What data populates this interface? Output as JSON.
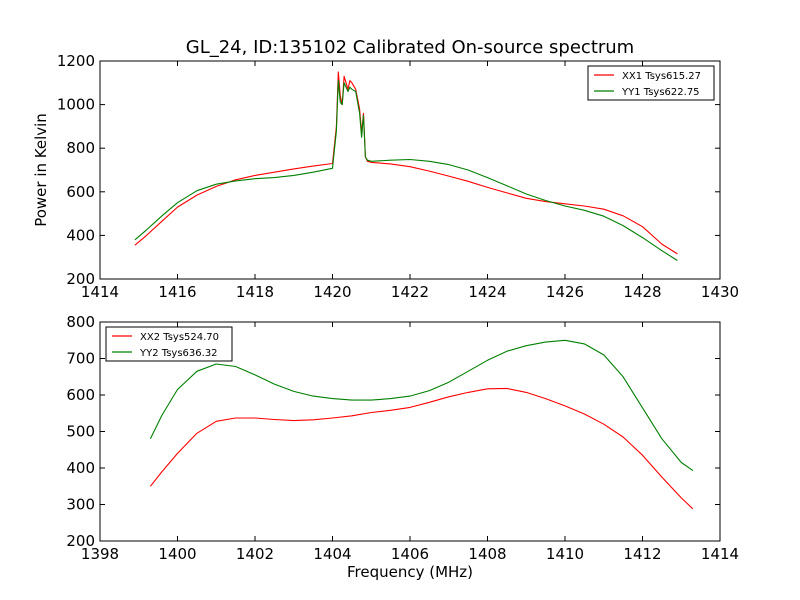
{
  "figure": {
    "title": "GL_24, ID:135102 Calibrated On-source spectrum",
    "shared_xlabel": "Frequency (MHz)"
  },
  "chart_data": [
    {
      "type": "line",
      "title": "GL_24, ID:135102 Calibrated On-source spectrum",
      "xlabel": "",
      "ylabel": "Power in Kelvin",
      "xlim": [
        1414,
        1430
      ],
      "ylim": [
        200,
        1200
      ],
      "xticks": [
        "1414",
        "1416",
        "1418",
        "1420",
        "1422",
        "1424",
        "1426",
        "1428",
        "1430"
      ],
      "yticks": [
        "200",
        "400",
        "600",
        "800",
        "1000",
        "1200"
      ],
      "legend_position": "top-right",
      "series": [
        {
          "name": "XX1 Tsys615.27",
          "color": "#ff0000",
          "x": [
            1414.9,
            1415.2,
            1415.6,
            1416.0,
            1416.5,
            1417.0,
            1417.5,
            1418.0,
            1418.5,
            1419.0,
            1419.5,
            1420.0,
            1420.1,
            1420.15,
            1420.2,
            1420.25,
            1420.3,
            1420.4,
            1420.45,
            1420.5,
            1420.6,
            1420.7,
            1420.75,
            1420.8,
            1420.85,
            1420.9,
            1421.0,
            1421.5,
            1422.0,
            1422.5,
            1423.0,
            1423.5,
            1424.0,
            1424.5,
            1425.0,
            1425.5,
            1426.0,
            1426.5,
            1427.0,
            1427.5,
            1428.0,
            1428.5,
            1428.9
          ],
          "y": [
            355,
            400,
            465,
            530,
            585,
            625,
            655,
            675,
            690,
            705,
            718,
            730,
            900,
            1150,
            1040,
            1000,
            1130,
            1070,
            1110,
            1100,
            1070,
            980,
            870,
            960,
            760,
            740,
            735,
            728,
            715,
            695,
            672,
            648,
            620,
            595,
            570,
            555,
            545,
            535,
            520,
            490,
            440,
            360,
            315
          ]
        },
        {
          "name": "YY1 Tsys622.75",
          "color": "#008000",
          "x": [
            1414.9,
            1415.2,
            1415.6,
            1416.0,
            1416.5,
            1417.0,
            1417.5,
            1418.0,
            1418.5,
            1419.0,
            1419.5,
            1420.0,
            1420.1,
            1420.15,
            1420.2,
            1420.25,
            1420.3,
            1420.4,
            1420.45,
            1420.5,
            1420.6,
            1420.7,
            1420.75,
            1420.8,
            1420.85,
            1420.9,
            1421.0,
            1421.5,
            1422.0,
            1422.5,
            1423.0,
            1423.5,
            1424.0,
            1424.5,
            1425.0,
            1425.5,
            1426.0,
            1426.5,
            1427.0,
            1427.5,
            1428.0,
            1428.5,
            1428.9
          ],
          "y": [
            380,
            425,
            490,
            550,
            605,
            635,
            650,
            660,
            665,
            675,
            690,
            708,
            880,
            1110,
            1010,
            1000,
            1100,
            1060,
            1080,
            1070,
            1060,
            960,
            850,
            950,
            760,
            745,
            740,
            745,
            748,
            740,
            725,
            700,
            665,
            628,
            590,
            560,
            535,
            515,
            488,
            445,
            390,
            330,
            285
          ]
        }
      ]
    },
    {
      "type": "line",
      "title": "",
      "xlabel": "Frequency (MHz)",
      "ylabel": "",
      "xlim": [
        1398,
        1414
      ],
      "ylim": [
        200,
        800
      ],
      "xticks": [
        "1398",
        "1400",
        "1402",
        "1404",
        "1406",
        "1408",
        "1410",
        "1412",
        "1414"
      ],
      "yticks": [
        "200",
        "300",
        "400",
        "500",
        "600",
        "700",
        "800"
      ],
      "legend_position": "top-left",
      "series": [
        {
          "name": "XX2 Tsys524.70",
          "color": "#ff0000",
          "x": [
            1399.3,
            1399.6,
            1400.0,
            1400.5,
            1401.0,
            1401.5,
            1402.0,
            1402.5,
            1403.0,
            1403.5,
            1404.0,
            1404.5,
            1405.0,
            1405.5,
            1406.0,
            1406.5,
            1407.0,
            1407.5,
            1408.0,
            1408.5,
            1409.0,
            1409.5,
            1410.0,
            1410.5,
            1411.0,
            1411.5,
            1412.0,
            1412.5,
            1413.0,
            1413.3
          ],
          "y": [
            350,
            390,
            440,
            495,
            528,
            537,
            537,
            533,
            530,
            532,
            537,
            543,
            552,
            558,
            566,
            580,
            595,
            607,
            617,
            618,
            607,
            590,
            570,
            548,
            520,
            485,
            435,
            375,
            318,
            288
          ]
        },
        {
          "name": "YY2 Tsys636.32",
          "color": "#008000",
          "x": [
            1399.3,
            1399.6,
            1400.0,
            1400.5,
            1401.0,
            1401.5,
            1402.0,
            1402.5,
            1403.0,
            1403.5,
            1404.0,
            1404.5,
            1405.0,
            1405.5,
            1406.0,
            1406.5,
            1407.0,
            1407.5,
            1408.0,
            1408.5,
            1409.0,
            1409.5,
            1410.0,
            1410.5,
            1411.0,
            1411.5,
            1412.0,
            1412.5,
            1413.0,
            1413.3
          ],
          "y": [
            480,
            545,
            615,
            665,
            685,
            678,
            655,
            630,
            610,
            597,
            590,
            586,
            586,
            590,
            597,
            612,
            635,
            665,
            695,
            720,
            735,
            745,
            750,
            740,
            710,
            650,
            565,
            480,
            415,
            393
          ]
        }
      ]
    }
  ]
}
